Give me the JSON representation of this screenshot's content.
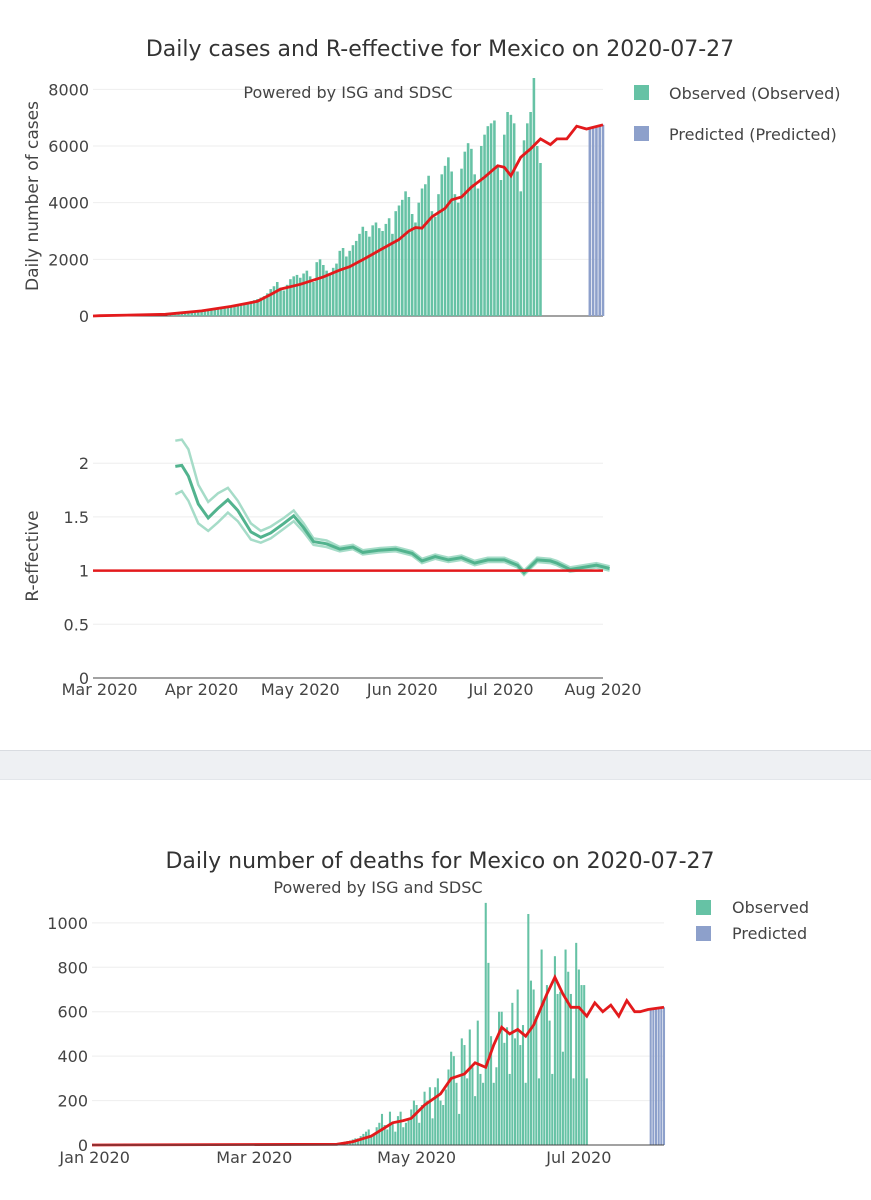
{
  "colors": {
    "observed": "#66c2a5",
    "predicted": "#8da0cb",
    "average_line": "#e31a1c",
    "r_line": "#52b38e",
    "r_band": "#a6dcc8",
    "grid": "#eeeeee",
    "axis_line": "#444444"
  },
  "chart_data": [
    {
      "id": "cases",
      "type": "bar",
      "title": "Daily cases and R-effective for Mexico on 2020-07-27",
      "annotation": "Powered by ISG and SDSC",
      "ylabel": "Daily number of cases",
      "xlabel": "",
      "ylim": [
        0,
        8400
      ],
      "yticks": [
        0,
        2000,
        4000,
        6000,
        8000
      ],
      "date_range": [
        "2020-02-28",
        "2020-08-01"
      ],
      "legend": [
        "Observed (Observed)",
        "Predicted (Predicted)"
      ],
      "legend_position": "top-right",
      "observed": {
        "start": "2020-03-22",
        "values": [
          100,
          100,
          110,
          120,
          130,
          130,
          140,
          150,
          160,
          170,
          180,
          200,
          220,
          230,
          250,
          270,
          290,
          310,
          330,
          350,
          380,
          400,
          420,
          450,
          480,
          520,
          560,
          600,
          650,
          700,
          800,
          950,
          1050,
          1200,
          1000,
          900,
          1100,
          1300,
          1400,
          1450,
          1350,
          1500,
          1600,
          1400,
          1200,
          1900,
          2000,
          1800,
          1600,
          1450,
          1700,
          1850,
          2300,
          2400,
          2100,
          2300,
          2500,
          2650,
          2900,
          3150,
          3000,
          2800,
          3200,
          3300,
          3100,
          3000,
          3250,
          3450,
          2900,
          3700,
          3900,
          4100,
          4400,
          4200,
          3600,
          3300,
          4000,
          4500,
          4650,
          4950,
          3700,
          3500,
          4300,
          5000,
          5300,
          5600,
          5100,
          4300,
          4000,
          5200,
          5800,
          6100,
          5900,
          5000,
          4500,
          6000,
          6400,
          6700,
          6800,
          6900,
          5300,
          4800,
          6400,
          7200,
          7100,
          6800,
          5100,
          4400,
          6200,
          6800,
          7200,
          8400,
          6000,
          5400
        ]
      },
      "predicted": {
        "start": "2020-07-28",
        "values": [
          6600,
          6640,
          6680,
          6720,
          6750
        ]
      },
      "average": {
        "x_start": "2020-02-28",
        "y_start": 0,
        "points": [
          [
            "2020-03-01",
            10
          ],
          [
            "2020-03-21",
            60
          ],
          [
            "2020-04-01",
            180
          ],
          [
            "2020-04-10",
            340
          ],
          [
            "2020-04-18",
            520
          ],
          [
            "2020-04-22",
            760
          ],
          [
            "2020-04-25",
            950
          ],
          [
            "2020-05-01",
            1120
          ],
          [
            "2020-05-08",
            1380
          ],
          [
            "2020-05-13",
            1620
          ],
          [
            "2020-05-16",
            1740
          ],
          [
            "2020-05-21",
            2050
          ],
          [
            "2020-05-26",
            2380
          ],
          [
            "2020-05-31",
            2700
          ],
          [
            "2020-06-03",
            3000
          ],
          [
            "2020-06-05",
            3120
          ],
          [
            "2020-06-07",
            3100
          ],
          [
            "2020-06-10",
            3500
          ],
          [
            "2020-06-14",
            3800
          ],
          [
            "2020-06-16",
            4100
          ],
          [
            "2020-06-19",
            4200
          ],
          [
            "2020-06-22",
            4550
          ],
          [
            "2020-06-26",
            4900
          ],
          [
            "2020-06-30",
            5300
          ],
          [
            "2020-07-02",
            5250
          ],
          [
            "2020-07-04",
            4950
          ],
          [
            "2020-07-07",
            5600
          ],
          [
            "2020-07-10",
            5900
          ],
          [
            "2020-07-13",
            6250
          ],
          [
            "2020-07-16",
            6050
          ],
          [
            "2020-07-18",
            6250
          ],
          [
            "2020-07-21",
            6250
          ],
          [
            "2020-07-24",
            6700
          ],
          [
            "2020-07-27",
            6600
          ],
          [
            "2020-08-01",
            6750
          ]
        ]
      }
    },
    {
      "id": "r_effective",
      "type": "line",
      "title": "",
      "ylabel": "R-effective",
      "xlabel": "",
      "ylim": [
        0,
        2.3
      ],
      "yticks": [
        0,
        0.5,
        1,
        1.5,
        2
      ],
      "ytick_labels": [
        "0",
        "0.5",
        "1",
        "1.5",
        "2"
      ],
      "date_range": [
        "2020-02-28",
        "2020-08-01"
      ],
      "xtick_dates": [
        "2020-03-01",
        "2020-04-01",
        "2020-05-01",
        "2020-06-01",
        "2020-07-01",
        "2020-08-01"
      ],
      "xtick_labels": [
        "Mar 2020",
        "Apr 2020",
        "May 2020",
        "Jun 2020",
        "Jul 2020",
        "Aug 2020"
      ],
      "reference_line": 1,
      "series": [
        {
          "name": "R",
          "points": [
            [
              "2020-03-24",
              1.97
            ],
            [
              "2020-03-26",
              1.98
            ],
            [
              "2020-03-28",
              1.88
            ],
            [
              "2020-03-31",
              1.62
            ],
            [
              "2020-04-03",
              1.49
            ],
            [
              "2020-04-06",
              1.58
            ],
            [
              "2020-04-09",
              1.66
            ],
            [
              "2020-04-12",
              1.56
            ],
            [
              "2020-04-16",
              1.36
            ],
            [
              "2020-04-19",
              1.31
            ],
            [
              "2020-04-22",
              1.35
            ],
            [
              "2020-04-26",
              1.44
            ],
            [
              "2020-04-29",
              1.51
            ],
            [
              "2020-05-02",
              1.4
            ],
            [
              "2020-05-05",
              1.27
            ],
            [
              "2020-05-09",
              1.25
            ],
            [
              "2020-05-13",
              1.2
            ],
            [
              "2020-05-17",
              1.22
            ],
            [
              "2020-05-20",
              1.17
            ],
            [
              "2020-05-25",
              1.19
            ],
            [
              "2020-05-30",
              1.2
            ],
            [
              "2020-06-04",
              1.16
            ],
            [
              "2020-06-07",
              1.09
            ],
            [
              "2020-06-11",
              1.13
            ],
            [
              "2020-06-15",
              1.1
            ],
            [
              "2020-06-19",
              1.12
            ],
            [
              "2020-06-23",
              1.07
            ],
            [
              "2020-06-27",
              1.1
            ],
            [
              "2020-07-02",
              1.1
            ],
            [
              "2020-07-06",
              1.05
            ],
            [
              "2020-07-08",
              0.98
            ],
            [
              "2020-07-12",
              1.1
            ],
            [
              "2020-07-16",
              1.09
            ],
            [
              "2020-07-18",
              1.07
            ],
            [
              "2020-07-22",
              1.01
            ],
            [
              "2020-07-26",
              1.03
            ],
            [
              "2020-07-30",
              1.05
            ],
            [
              "2020-08-03",
              1.02
            ]
          ]
        },
        {
          "name": "R upper",
          "points": [
            [
              "2020-03-24",
              2.21
            ],
            [
              "2020-03-26",
              2.22
            ],
            [
              "2020-03-28",
              2.13
            ],
            [
              "2020-03-31",
              1.8
            ],
            [
              "2020-04-03",
              1.64
            ],
            [
              "2020-04-06",
              1.72
            ],
            [
              "2020-04-09",
              1.77
            ],
            [
              "2020-04-12",
              1.65
            ],
            [
              "2020-04-16",
              1.44
            ],
            [
              "2020-04-19",
              1.37
            ],
            [
              "2020-04-22",
              1.41
            ],
            [
              "2020-04-26",
              1.49
            ],
            [
              "2020-04-29",
              1.56
            ],
            [
              "2020-05-02",
              1.44
            ],
            [
              "2020-05-05",
              1.3
            ],
            [
              "2020-05-09",
              1.28
            ],
            [
              "2020-05-13",
              1.22
            ],
            [
              "2020-05-17",
              1.24
            ],
            [
              "2020-05-20",
              1.19
            ],
            [
              "2020-05-25",
              1.21
            ],
            [
              "2020-05-30",
              1.22
            ],
            [
              "2020-06-04",
              1.18
            ],
            [
              "2020-06-07",
              1.11
            ],
            [
              "2020-06-11",
              1.15
            ],
            [
              "2020-06-15",
              1.12
            ],
            [
              "2020-06-19",
              1.14
            ],
            [
              "2020-06-23",
              1.09
            ],
            [
              "2020-06-27",
              1.12
            ],
            [
              "2020-07-02",
              1.12
            ],
            [
              "2020-07-06",
              1.07
            ],
            [
              "2020-07-08",
              1.0
            ],
            [
              "2020-07-12",
              1.12
            ],
            [
              "2020-07-16",
              1.11
            ],
            [
              "2020-07-18",
              1.09
            ],
            [
              "2020-07-22",
              1.03
            ],
            [
              "2020-07-26",
              1.05
            ],
            [
              "2020-07-30",
              1.07
            ],
            [
              "2020-08-03",
              1.04
            ]
          ]
        },
        {
          "name": "R lower",
          "points": [
            [
              "2020-03-24",
              1.71
            ],
            [
              "2020-03-26",
              1.74
            ],
            [
              "2020-03-28",
              1.65
            ],
            [
              "2020-03-31",
              1.44
            ],
            [
              "2020-04-03",
              1.37
            ],
            [
              "2020-04-06",
              1.45
            ],
            [
              "2020-04-09",
              1.54
            ],
            [
              "2020-04-12",
              1.46
            ],
            [
              "2020-04-16",
              1.29
            ],
            [
              "2020-04-19",
              1.26
            ],
            [
              "2020-04-22",
              1.3
            ],
            [
              "2020-04-26",
              1.39
            ],
            [
              "2020-04-29",
              1.46
            ],
            [
              "2020-05-02",
              1.36
            ],
            [
              "2020-05-05",
              1.24
            ],
            [
              "2020-05-09",
              1.22
            ],
            [
              "2020-05-13",
              1.18
            ],
            [
              "2020-05-17",
              1.2
            ],
            [
              "2020-05-20",
              1.15
            ],
            [
              "2020-05-25",
              1.17
            ],
            [
              "2020-05-30",
              1.18
            ],
            [
              "2020-06-04",
              1.14
            ],
            [
              "2020-06-07",
              1.07
            ],
            [
              "2020-06-11",
              1.11
            ],
            [
              "2020-06-15",
              1.08
            ],
            [
              "2020-06-19",
              1.1
            ],
            [
              "2020-06-23",
              1.05
            ],
            [
              "2020-06-27",
              1.08
            ],
            [
              "2020-07-02",
              1.08
            ],
            [
              "2020-07-06",
              1.03
            ],
            [
              "2020-07-08",
              0.96
            ],
            [
              "2020-07-12",
              1.08
            ],
            [
              "2020-07-16",
              1.07
            ],
            [
              "2020-07-18",
              1.05
            ],
            [
              "2020-07-22",
              0.99
            ],
            [
              "2020-07-26",
              1.01
            ],
            [
              "2020-07-30",
              1.03
            ],
            [
              "2020-08-03",
              1.0
            ]
          ]
        }
      ]
    },
    {
      "id": "deaths",
      "type": "bar",
      "title": "Daily number of deaths for Mexico on 2020-07-27",
      "annotation": "Powered by ISG and SDSC",
      "ylabel": "",
      "xlabel": "",
      "ylim": [
        0,
        1130
      ],
      "yticks": [
        0,
        200,
        400,
        600,
        800,
        1000
      ],
      "date_range": [
        "2019-12-31",
        "2020-08-02"
      ],
      "xtick_dates": [
        "2020-01-01",
        "2020-03-01",
        "2020-05-01",
        "2020-07-01"
      ],
      "xtick_labels": [
        "Jan 2020",
        "Mar 2020",
        "May 2020",
        "Jul 2020"
      ],
      "legend": [
        "Observed",
        "Predicted"
      ],
      "legend_position": "top-right",
      "observed": {
        "start": "2020-03-31",
        "values": [
          5,
          8,
          10,
          12,
          15,
          18,
          20,
          25,
          30,
          30,
          40,
          50,
          60,
          70,
          40,
          50,
          80,
          100,
          140,
          90,
          70,
          150,
          100,
          60,
          130,
          150,
          80,
          100,
          120,
          160,
          200,
          180,
          100,
          180,
          240,
          200,
          260,
          120,
          260,
          300,
          200,
          180,
          250,
          340,
          420,
          400,
          280,
          140,
          480,
          450,
          300,
          520,
          350,
          220,
          560,
          320,
          280,
          1090,
          820,
          490,
          280,
          350,
          600,
          600,
          460,
          530,
          320,
          640,
          480,
          700,
          450,
          540,
          280,
          1040,
          740,
          700,
          580,
          300,
          880,
          650,
          720,
          560,
          320,
          850,
          680,
          690,
          420,
          880,
          780,
          680,
          300,
          910,
          790,
          720,
          720,
          300
        ]
      },
      "predicted": {
        "start": "2020-07-28",
        "values": [
          610,
          612,
          614,
          616,
          618,
          620
        ]
      },
      "average": {
        "x_start": "2019-12-31",
        "y_start": 0,
        "points": [
          [
            "2020-01-01",
            0
          ],
          [
            "2020-04-01",
            3
          ],
          [
            "2020-04-07",
            15
          ],
          [
            "2020-04-14",
            40
          ],
          [
            "2020-04-18",
            70
          ],
          [
            "2020-04-22",
            100
          ],
          [
            "2020-04-26",
            110
          ],
          [
            "2020-04-29",
            120
          ],
          [
            "2020-05-04",
            180
          ],
          [
            "2020-05-10",
            230
          ],
          [
            "2020-05-14",
            300
          ],
          [
            "2020-05-19",
            320
          ],
          [
            "2020-05-23",
            370
          ],
          [
            "2020-05-27",
            350
          ],
          [
            "2020-05-30",
            450
          ],
          [
            "2020-06-02",
            530
          ],
          [
            "2020-06-05",
            500
          ],
          [
            "2020-06-08",
            520
          ],
          [
            "2020-06-11",
            490
          ],
          [
            "2020-06-14",
            540
          ],
          [
            "2020-06-19",
            680
          ],
          [
            "2020-06-22",
            755
          ],
          [
            "2020-06-25",
            680
          ],
          [
            "2020-06-28",
            620
          ],
          [
            "2020-07-01",
            620
          ],
          [
            "2020-07-04",
            580
          ],
          [
            "2020-07-07",
            640
          ],
          [
            "2020-07-10",
            600
          ],
          [
            "2020-07-13",
            630
          ],
          [
            "2020-07-16",
            580
          ],
          [
            "2020-07-19",
            650
          ],
          [
            "2020-07-22",
            600
          ],
          [
            "2020-07-24",
            600
          ],
          [
            "2020-07-27",
            610
          ],
          [
            "2020-08-02",
            620
          ]
        ]
      }
    }
  ]
}
